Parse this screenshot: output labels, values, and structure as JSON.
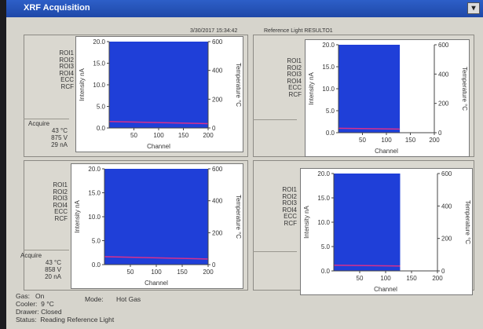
{
  "window": {
    "title": "XRF Acquisition"
  },
  "header": {
    "date_time": "3/30/2017  15:34:42",
    "reference_light": "Reference Light  RESULTO1"
  },
  "colors": {
    "plot_fill": "#1f3fd8",
    "temperature_line": "#d8308c",
    "axis": "#444444"
  },
  "quadrants": [
    {
      "roi_labels": [
        "ROI1",
        "ROI2",
        "ROI3",
        "ROI4",
        "ECC",
        "RCF"
      ],
      "acquire": {
        "label": "Acquire",
        "temp": "43 °C",
        "voltage": "875  V",
        "current": "29  nA"
      }
    },
    {
      "roi_labels": [
        "ROI1",
        "ROI2",
        "ROI3",
        "ROI4",
        "ECC",
        "RCF"
      ],
      "acquire": null
    },
    {
      "roi_labels": [
        "ROI1",
        "ROI2",
        "ROI3",
        "ROI4",
        "ECC",
        "RCF"
      ],
      "acquire": {
        "label": "Acquire",
        "temp": "43 °C",
        "voltage": "858  V",
        "current": "20  nA"
      }
    },
    {
      "roi_labels": [
        "ROI1",
        "ROI2",
        "ROI3",
        "ROI4",
        "ECC",
        "RCF"
      ],
      "acquire": null
    }
  ],
  "chart_data": [
    {
      "type": "area",
      "xlabel": "Channel",
      "ylabel": "Intensity nA",
      "y2label": "Temperature °C",
      "xlim": [
        0,
        200
      ],
      "ylim": [
        0,
        20
      ],
      "y2lim": [
        0,
        600
      ],
      "xticks": [
        "50",
        "100",
        "150",
        "200"
      ],
      "yticks": [
        "0.0",
        "5.0",
        "10.0",
        "15.0",
        "20.0"
      ],
      "y2ticks": [
        "0",
        "200",
        "400",
        "600"
      ],
      "fill_x_end": 200,
      "fill_level": 20,
      "temp_line": [
        [
          0,
          45
        ],
        [
          200,
          30
        ]
      ]
    },
    {
      "type": "area",
      "xlabel": "Channel",
      "ylabel": "Intensity nA",
      "y2label": "Temperature °C",
      "xlim": [
        0,
        200
      ],
      "ylim": [
        0,
        20
      ],
      "y2lim": [
        0,
        600
      ],
      "xticks": [
        "50",
        "100",
        "150",
        "200"
      ],
      "yticks": [
        "0.0",
        "5.0",
        "10.0",
        "15.0",
        "20.0"
      ],
      "y2ticks": [
        "0",
        "200",
        "400",
        "600"
      ],
      "fill_x_end": 128,
      "fill_level": 20,
      "temp_line": [
        [
          0,
          30
        ],
        [
          128,
          25
        ]
      ]
    },
    {
      "type": "area",
      "xlabel": "Channel",
      "ylabel": "Intensity nA",
      "y2label": "Temperature °C",
      "xlim": [
        0,
        200
      ],
      "ylim": [
        0,
        20
      ],
      "y2lim": [
        0,
        600
      ],
      "xticks": [
        "50",
        "100",
        "150",
        "200"
      ],
      "yticks": [
        "0.0",
        "5.0",
        "10.0",
        "15.0",
        "20.0"
      ],
      "y2ticks": [
        "0",
        "200",
        "400",
        "600"
      ],
      "fill_x_end": 200,
      "fill_level": 20,
      "temp_line": [
        [
          0,
          50
        ],
        [
          200,
          35
        ]
      ]
    },
    {
      "type": "area",
      "xlabel": "Channel",
      "ylabel": "Intensity nA",
      "y2label": "Temperature °C",
      "xlim": [
        0,
        200
      ],
      "ylim": [
        0,
        20
      ],
      "y2lim": [
        0,
        600
      ],
      "xticks": [
        "50",
        "100",
        "150",
        "200"
      ],
      "yticks": [
        "0.0",
        "5.0",
        "10.0",
        "15.0",
        "20.0"
      ],
      "y2ticks": [
        "0",
        "200",
        "400",
        "600"
      ],
      "fill_x_end": 128,
      "fill_level": 20,
      "temp_line": [
        [
          0,
          35
        ],
        [
          128,
          30
        ]
      ]
    }
  ],
  "status": {
    "gas_label": "Gas:",
    "gas_value": "On",
    "cooler_label": "Cooler:",
    "cooler_value": "9 °C",
    "drawer_label": "Drawer:",
    "drawer_value": "Closed",
    "status_label": "Status:",
    "status_value": "Reading Reference Light",
    "mode_label": "Mode:",
    "mode_value": "Hot Gas"
  }
}
